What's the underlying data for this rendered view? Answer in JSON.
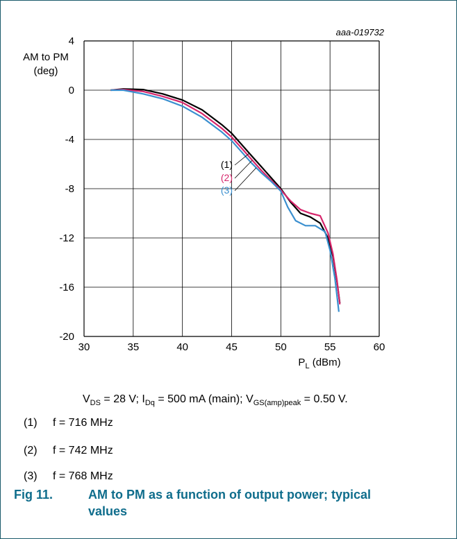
{
  "chart_data": {
    "type": "line",
    "code": "aaa-019732",
    "ylabel_line1": "AM to PM",
    "ylabel_line2": "(deg)",
    "xlabel_main": "P",
    "xlabel_sub": "L",
    "xlabel_unit": " (dBm)",
    "xlim": [
      30,
      60
    ],
    "ylim": [
      -20,
      4
    ],
    "xticks": [
      30,
      35,
      40,
      45,
      50,
      55,
      60
    ],
    "yticks": [
      4,
      0,
      -4,
      -8,
      -12,
      -16,
      -20
    ],
    "grid": true,
    "series": [
      {
        "name": "(1)",
        "color": "#000000",
        "points": [
          [
            32.7,
            0.0
          ],
          [
            34,
            0.1
          ],
          [
            36,
            0.05
          ],
          [
            38,
            -0.3
          ],
          [
            40,
            -0.8
          ],
          [
            42,
            -1.6
          ],
          [
            44,
            -2.8
          ],
          [
            45,
            -3.5
          ],
          [
            46,
            -4.4
          ],
          [
            47,
            -5.3
          ],
          [
            48,
            -6.2
          ],
          [
            49,
            -7.1
          ],
          [
            50,
            -8.0
          ],
          [
            51,
            -9.1
          ],
          [
            52,
            -10.0
          ],
          [
            53,
            -10.3
          ],
          [
            54,
            -10.8
          ],
          [
            54.8,
            -12.0
          ],
          [
            55.3,
            -13.5
          ],
          [
            55.7,
            -15.5
          ],
          [
            56.0,
            -17.3
          ]
        ]
      },
      {
        "name": "(2)",
        "color": "#d6256b",
        "points": [
          [
            32.7,
            0.0
          ],
          [
            34,
            0.05
          ],
          [
            36,
            -0.1
          ],
          [
            38,
            -0.5
          ],
          [
            40,
            -1.0
          ],
          [
            42,
            -1.9
          ],
          [
            44,
            -3.1
          ],
          [
            45,
            -3.8
          ],
          [
            46,
            -4.7
          ],
          [
            47,
            -5.6
          ],
          [
            48,
            -6.5
          ],
          [
            49,
            -7.3
          ],
          [
            50,
            -8.1
          ],
          [
            51,
            -9.0
          ],
          [
            52,
            -9.7
          ],
          [
            53,
            -10.0
          ],
          [
            54,
            -10.2
          ],
          [
            54.8,
            -11.6
          ],
          [
            55.3,
            -13.3
          ],
          [
            55.7,
            -15.4
          ],
          [
            56.0,
            -17.4
          ]
        ]
      },
      {
        "name": "(3)",
        "color": "#3a8fcf",
        "points": [
          [
            32.7,
            0.0
          ],
          [
            34,
            0.0
          ],
          [
            36,
            -0.3
          ],
          [
            38,
            -0.7
          ],
          [
            40,
            -1.3
          ],
          [
            42,
            -2.2
          ],
          [
            44,
            -3.4
          ],
          [
            45,
            -4.1
          ],
          [
            46,
            -5.0
          ],
          [
            47,
            -5.9
          ],
          [
            48,
            -6.7
          ],
          [
            49,
            -7.4
          ],
          [
            50,
            -8.2
          ],
          [
            50.7,
            -9.5
          ],
          [
            51.5,
            -10.6
          ],
          [
            52.5,
            -11.0
          ],
          [
            53.5,
            -11.0
          ],
          [
            54.5,
            -11.5
          ],
          [
            55.0,
            -13.0
          ],
          [
            55.5,
            -15.3
          ],
          [
            55.9,
            -18.0
          ]
        ]
      }
    ]
  },
  "conditions": {
    "v_main": "V",
    "v_sub": "DS",
    "v_rest": " = 28 V; I",
    "i_sub": "Dq",
    "i_rest": " = 500 mA (main); V",
    "vgs_sub": "GS(amp)peak",
    "vgs_rest": " = 0.50 V."
  },
  "notes": [
    {
      "num": "(1)",
      "text": "f = 716 MHz"
    },
    {
      "num": "(2)",
      "text": "f = 742 MHz"
    },
    {
      "num": "(3)",
      "text": "f = 768 MHz"
    }
  ],
  "figure": {
    "label": "Fig 11.",
    "caption": "AM to PM as a function of output power; typical values",
    "color": "#0f6d8c"
  }
}
